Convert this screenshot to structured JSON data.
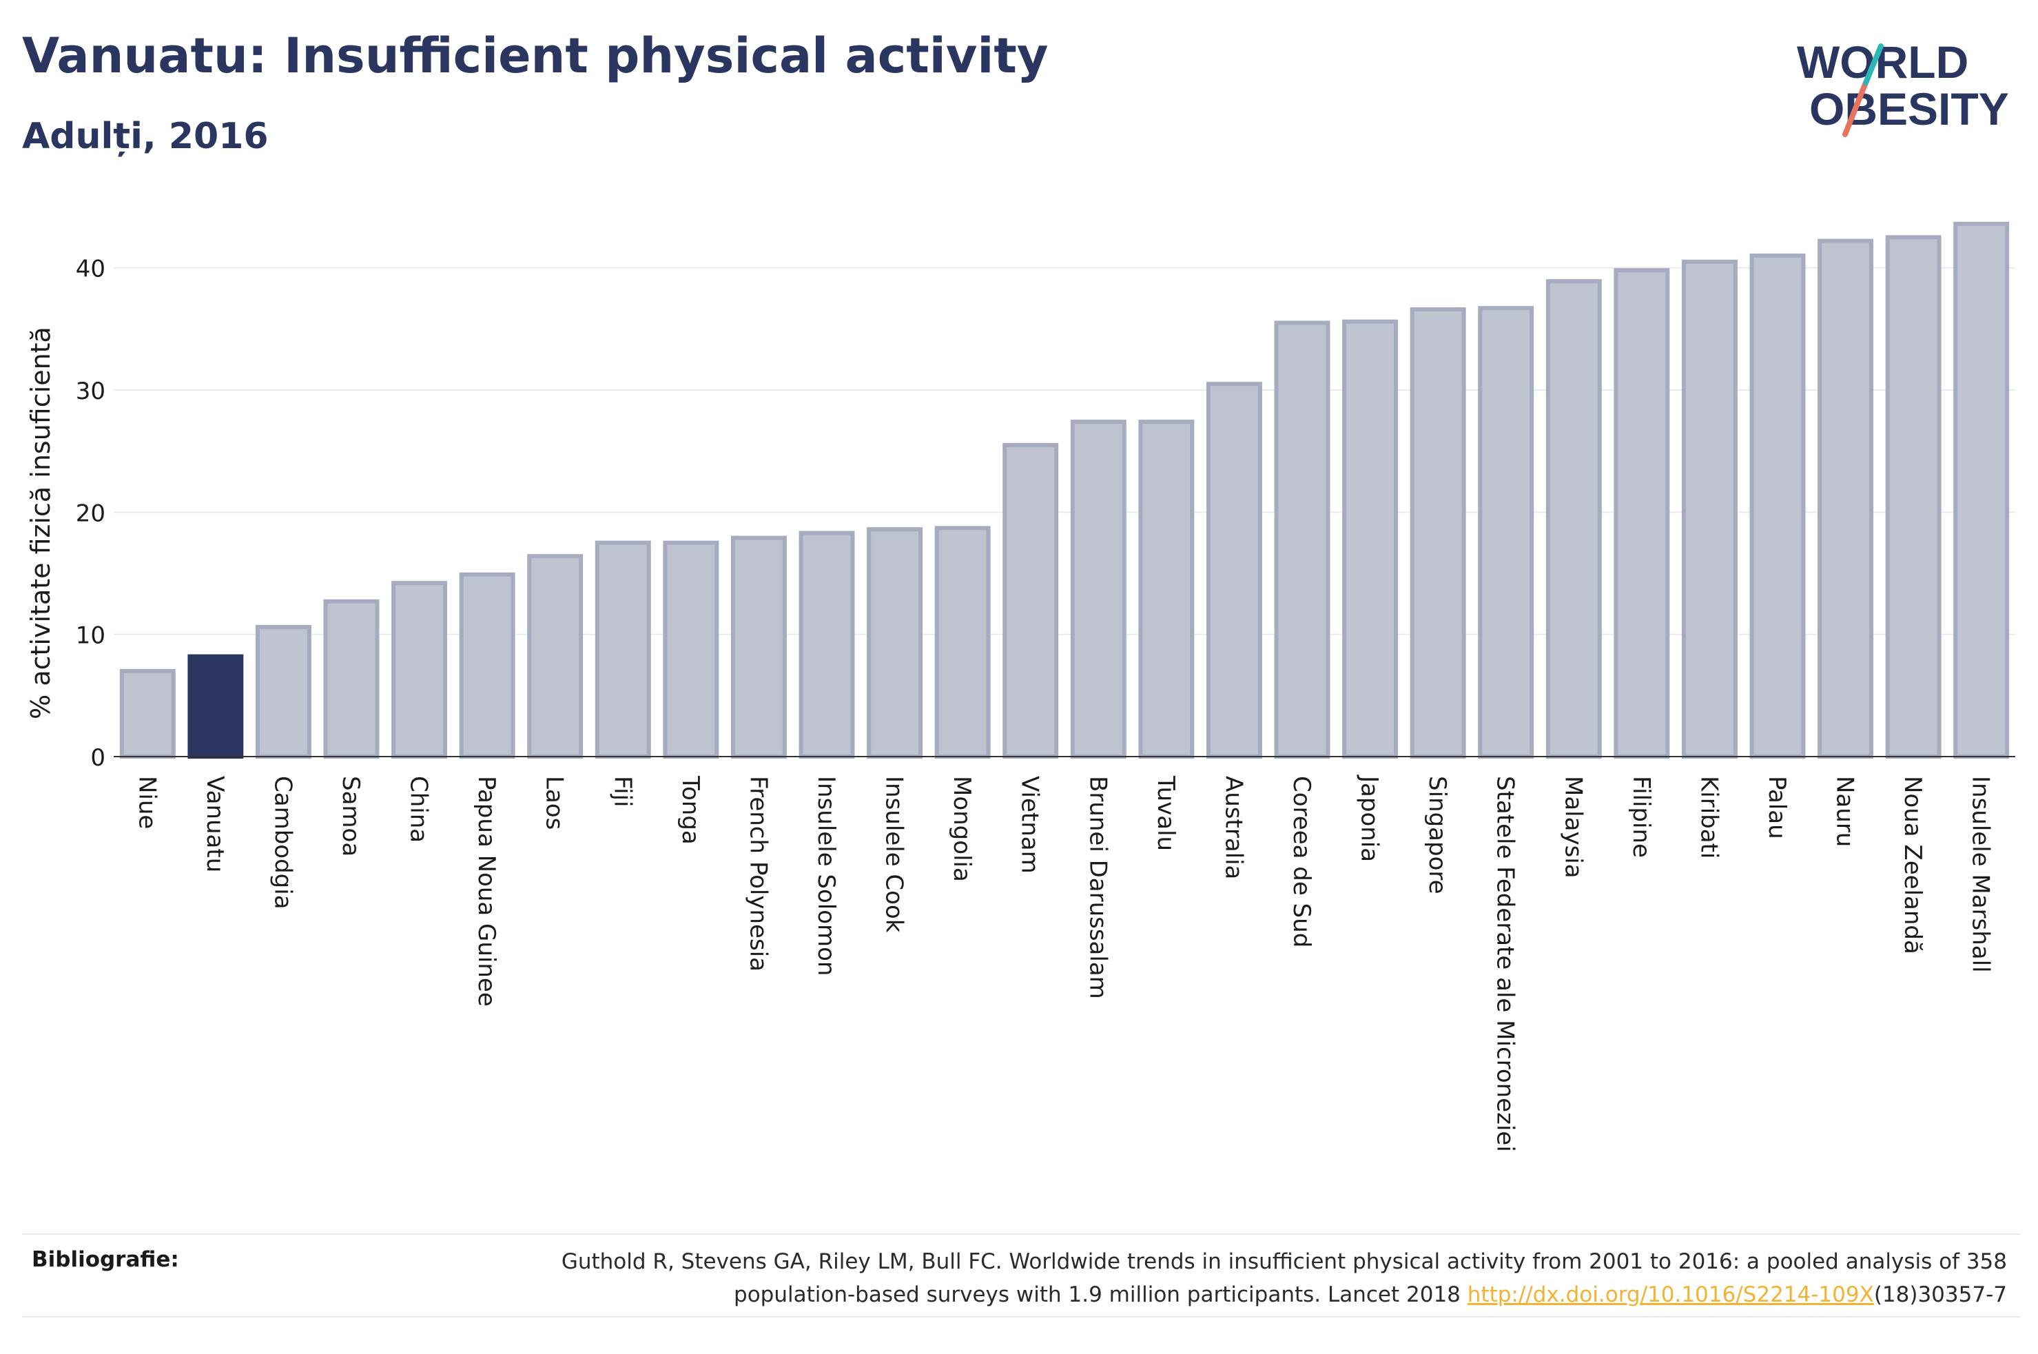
{
  "header": {
    "title": "Vanuatu: Insufficient physical activity",
    "subtitle": "Adulți, 2016"
  },
  "logo": {
    "line1": "WORLD",
    "line2": "OBESITY"
  },
  "chart_data": {
    "type": "bar",
    "title": "Vanuatu: Insufficient physical activity",
    "subtitle": "Adulți, 2016",
    "xlabel": "",
    "ylabel": "% activitate fizică insuficientă",
    "ylim": [
      0,
      45
    ],
    "yticks": [
      0,
      10,
      20,
      30,
      40
    ],
    "grid": true,
    "highlight": "Vanuatu",
    "categories": [
      "Niue",
      "Vanuatu",
      "Cambodgia",
      "Samoa",
      "China",
      "Papua Noua Guinee",
      "Laos",
      "Fiji",
      "Tonga",
      "French Polynesia",
      "Insulele Solomon",
      "Insulele Cook",
      "Mongolia",
      "Vietnam",
      "Brunei Darussalam",
      "Tuvalu",
      "Australia",
      "Coreea de Sud",
      "Japonia",
      "Singapore",
      "Statele Federate ale Microneziei",
      "Malaysia",
      "Filipine",
      "Kiribati",
      "Palau",
      "Nauru",
      "Noua Zeelandă",
      "Insulele Marshall"
    ],
    "values": [
      7.0,
      8.2,
      10.6,
      12.7,
      14.2,
      14.9,
      16.4,
      17.5,
      17.5,
      17.9,
      18.3,
      18.6,
      18.7,
      25.5,
      27.4,
      27.4,
      30.5,
      35.5,
      35.6,
      36.6,
      36.7,
      38.9,
      39.8,
      40.5,
      41.0,
      42.2,
      42.5,
      43.6
    ]
  },
  "colors": {
    "highlight": "#2b3660",
    "bar": "#bfc3cf",
    "bar_outline": "#a6abc0",
    "text": "#2b3660",
    "link": "#f2b233",
    "logo_teal": "#2bb7b3",
    "logo_coral": "#e8735f"
  },
  "bibliography": {
    "label": "Bibliografie:",
    "text_line1": "Guthold R, Stevens GA, Riley LM, Bull FC. Worldwide trends in insufficient physical activity from 2001 to 2016: a pooled analysis of 358",
    "text_line2_prefix": "population-based surveys with 1.9 million participants. Lancet 2018",
    "link": "http://dx.doi.org/10.1016/S2214-109X",
    "text_line2_suffix": "(18)30357-7"
  }
}
